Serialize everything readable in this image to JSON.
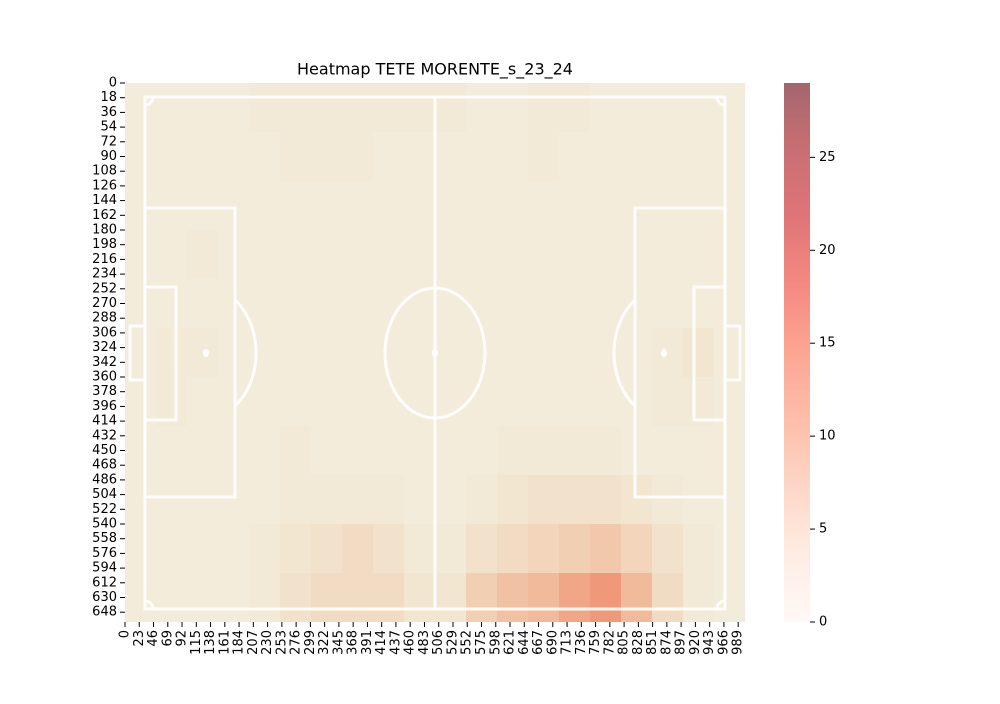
{
  "chart_data": {
    "type": "heatmap",
    "title": "Heatmap TETE MORENTE_s_23_24",
    "xlim": [
      0,
      1000
    ],
    "ylim": [
      0,
      660
    ],
    "y_inverted": true,
    "xticks": [
      0,
      23,
      46,
      69,
      92,
      115,
      138,
      161,
      184,
      207,
      230,
      253,
      276,
      299,
      322,
      345,
      368,
      391,
      414,
      437,
      460,
      483,
      506,
      529,
      552,
      575,
      598,
      621,
      644,
      667,
      690,
      713,
      736,
      759,
      782,
      805,
      828,
      851,
      874,
      897,
      920,
      943,
      966,
      989
    ],
    "yticks": [
      0,
      18,
      36,
      54,
      72,
      90,
      108,
      126,
      144,
      162,
      180,
      198,
      216,
      234,
      252,
      270,
      288,
      306,
      324,
      342,
      360,
      378,
      396,
      414,
      432,
      450,
      468,
      486,
      504,
      522,
      540,
      558,
      576,
      594,
      612,
      630,
      648
    ],
    "colormap": "Reds",
    "clim": [
      0,
      29
    ],
    "cticks": [
      0,
      5,
      10,
      15,
      20,
      25
    ],
    "values": [
      [
        1,
        1,
        1,
        1,
        2,
        2,
        2,
        2,
        2,
        2,
        2,
        1,
        1,
        2,
        2,
        1,
        1,
        1,
        1,
        1
      ],
      [
        1,
        1,
        1,
        1,
        1,
        2,
        2,
        2,
        1,
        1,
        1,
        1,
        1,
        2,
        1,
        1,
        1,
        1,
        1,
        1
      ],
      [
        1,
        1,
        1,
        1,
        1,
        1,
        1,
        1,
        1,
        1,
        1,
        1,
        1,
        1,
        1,
        1,
        1,
        1,
        1,
        1
      ],
      [
        1,
        1,
        2,
        1,
        1,
        1,
        1,
        1,
        1,
        1,
        1,
        1,
        1,
        1,
        1,
        1,
        1,
        1,
        1,
        1
      ],
      [
        1,
        1,
        1,
        1,
        1,
        1,
        1,
        1,
        1,
        1,
        1,
        1,
        1,
        1,
        1,
        1,
        1,
        1,
        1,
        1
      ],
      [
        1,
        2,
        2,
        1,
        1,
        1,
        1,
        1,
        1,
        1,
        1,
        1,
        1,
        1,
        1,
        1,
        1,
        2,
        3,
        1
      ],
      [
        1,
        2,
        1,
        1,
        1,
        1,
        1,
        1,
        1,
        1,
        1,
        1,
        1,
        1,
        1,
        1,
        1,
        2,
        2,
        1
      ],
      [
        1,
        1,
        1,
        1,
        1,
        2,
        1,
        1,
        1,
        1,
        1,
        1,
        2,
        2,
        2,
        2,
        1,
        1,
        1,
        1
      ],
      [
        1,
        1,
        1,
        1,
        1,
        2,
        2,
        2,
        2,
        1,
        1,
        2,
        3,
        4,
        4,
        4,
        3,
        2,
        1,
        1
      ],
      [
        1,
        1,
        1,
        1,
        2,
        3,
        4,
        5,
        4,
        2,
        2,
        4,
        5,
        6,
        7,
        8,
        6,
        4,
        2,
        1
      ],
      [
        1,
        1,
        1,
        1,
        2,
        4,
        5,
        5,
        5,
        3,
        3,
        7,
        9,
        10,
        13,
        15,
        10,
        5,
        2,
        1
      ]
    ]
  }
}
